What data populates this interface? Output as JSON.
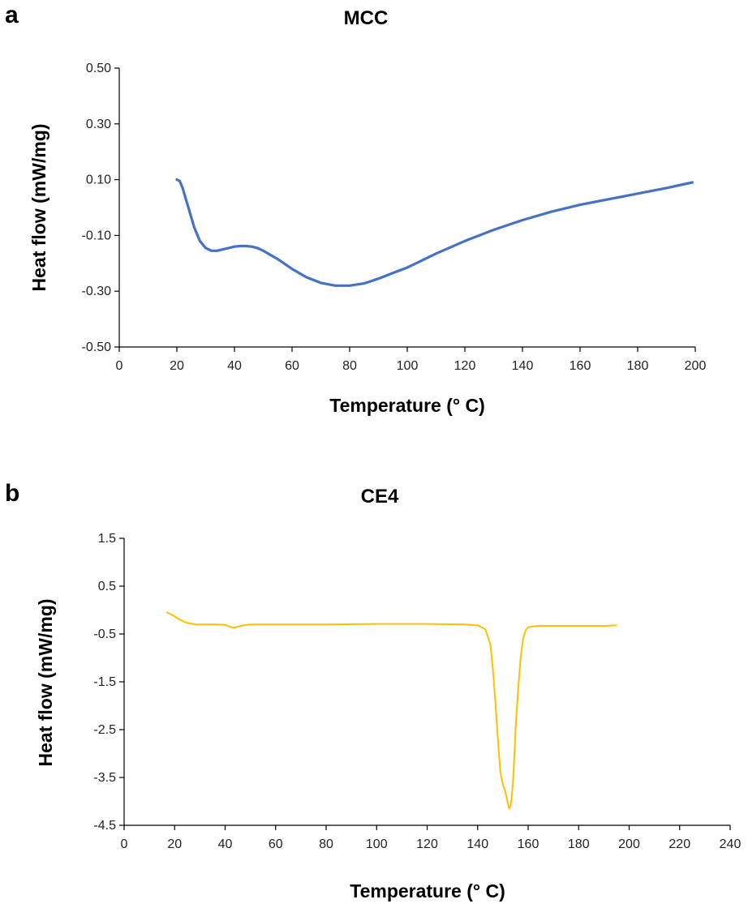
{
  "chart_data": [
    {
      "panel": "a",
      "type": "line",
      "title": "MCC",
      "xlabel": "Temperature (° C)",
      "ylabel": "Heat flow (mW/mg)",
      "xlim": [
        0,
        200
      ],
      "ylim": [
        -0.5,
        0.5
      ],
      "xticks": [
        "0",
        "20",
        "40",
        "60",
        "80",
        "100",
        "120",
        "140",
        "160",
        "180",
        "200"
      ],
      "yticks": [
        "-0.50",
        "-0.30",
        "-0.10",
        "0.10",
        "0.30",
        "0.50"
      ],
      "grid": false,
      "series": [
        {
          "color": "#4472C4",
          "x": [
            20,
            21,
            22,
            24,
            26,
            28,
            30,
            32,
            34,
            36,
            38,
            40,
            42,
            44,
            46,
            48,
            50,
            55,
            60,
            65,
            70,
            75,
            80,
            85,
            90,
            95,
            100,
            110,
            120,
            130,
            140,
            150,
            160,
            170,
            180,
            190,
            199
          ],
          "y": [
            0.1,
            0.095,
            0.07,
            0.0,
            -0.07,
            -0.12,
            -0.145,
            -0.155,
            -0.155,
            -0.15,
            -0.145,
            -0.14,
            -0.138,
            -0.138,
            -0.14,
            -0.145,
            -0.155,
            -0.185,
            -0.22,
            -0.25,
            -0.27,
            -0.28,
            -0.28,
            -0.272,
            -0.255,
            -0.235,
            -0.215,
            -0.165,
            -0.12,
            -0.08,
            -0.045,
            -0.015,
            0.01,
            0.03,
            0.05,
            0.07,
            0.09
          ]
        }
      ]
    },
    {
      "panel": "b",
      "type": "line",
      "title": "CE4",
      "xlabel": "Temperature (° C)",
      "ylabel": "Heat flow (mW/mg)",
      "xlim": [
        0,
        240
      ],
      "ylim": [
        -4.5,
        1.5
      ],
      "xticks": [
        "0",
        "20",
        "40",
        "60",
        "80",
        "100",
        "120",
        "140",
        "160",
        "180",
        "200",
        "220",
        "240"
      ],
      "yticks": [
        "1.5",
        "0.5",
        "-0.5",
        "-1.5",
        "-2.5",
        "-3.5",
        "-4.5"
      ],
      "grid": false,
      "series": [
        {
          "color": "#FFC000",
          "x": [
            17,
            19,
            22,
            25,
            28,
            32,
            36,
            40,
            42,
            43,
            45,
            47,
            50,
            60,
            80,
            100,
            120,
            135,
            140,
            143,
            145,
            146,
            147,
            148,
            149,
            150,
            151,
            152,
            152.5,
            153,
            153.5,
            154,
            154.5,
            155,
            156,
            157,
            158,
            159,
            160,
            162,
            165,
            170,
            180,
            190,
            195
          ],
          "y": [
            -0.05,
            -0.1,
            -0.2,
            -0.27,
            -0.3,
            -0.3,
            -0.3,
            -0.31,
            -0.35,
            -0.37,
            -0.35,
            -0.32,
            -0.3,
            -0.3,
            -0.3,
            -0.29,
            -0.29,
            -0.3,
            -0.32,
            -0.4,
            -0.7,
            -1.2,
            -1.9,
            -2.7,
            -3.4,
            -3.65,
            -3.8,
            -4.05,
            -4.15,
            -4.1,
            -3.9,
            -3.6,
            -3.1,
            -2.5,
            -1.7,
            -1.0,
            -0.6,
            -0.42,
            -0.36,
            -0.34,
            -0.33,
            -0.33,
            -0.33,
            -0.33,
            -0.32
          ]
        }
      ]
    }
  ],
  "panels": [
    {
      "letter": "a",
      "title": "MCC",
      "xlabel": "Temperature (° C)",
      "ylabel": "Heat flow (mW/mg)"
    },
    {
      "letter": "b",
      "title": "CE4",
      "xlabel": "Temperature (° C)",
      "ylabel": "Heat flow (mW/mg)"
    }
  ]
}
